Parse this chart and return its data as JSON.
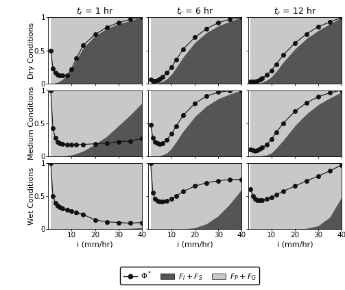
{
  "col_titles": [
    "$t_r$ = 1 hr",
    "$t_r$ = 6 hr",
    "$t_r$ = 12 hr"
  ],
  "row_titles": [
    "Dry Conditions",
    "Medium Conditions",
    "Wet Conditions"
  ],
  "xlabel": "i (mm/hr)",
  "xlim": [
    0,
    40
  ],
  "ylim": [
    0,
    1
  ],
  "yticks": [
    0,
    0.5,
    1
  ],
  "xticks": [
    10,
    20,
    30,
    40
  ],
  "i_values": [
    1,
    2,
    3,
    4,
    5,
    6,
    8,
    10,
    12,
    15,
    20,
    25,
    30,
    35,
    40
  ],
  "phi_star": [
    [
      0.5,
      0.23,
      0.16,
      0.13,
      0.12,
      0.12,
      0.12,
      0.22,
      0.38,
      0.58,
      0.74,
      0.85,
      0.92,
      0.97,
      1.0
    ],
    [
      0.06,
      0.04,
      0.04,
      0.05,
      0.07,
      0.1,
      0.16,
      0.25,
      0.36,
      0.52,
      0.7,
      0.83,
      0.92,
      0.97,
      1.0
    ],
    [
      0.03,
      0.03,
      0.03,
      0.04,
      0.06,
      0.08,
      0.13,
      0.2,
      0.29,
      0.43,
      0.61,
      0.75,
      0.86,
      0.93,
      1.0
    ],
    [
      1.0,
      0.42,
      0.28,
      0.22,
      0.2,
      0.19,
      0.18,
      0.18,
      0.18,
      0.18,
      0.19,
      0.2,
      0.22,
      0.23,
      0.27
    ],
    [
      0.48,
      0.28,
      0.22,
      0.2,
      0.19,
      0.2,
      0.25,
      0.34,
      0.46,
      0.62,
      0.8,
      0.91,
      0.97,
      0.99,
      1.0
    ],
    [
      0.1,
      0.09,
      0.08,
      0.09,
      0.11,
      0.13,
      0.18,
      0.26,
      0.36,
      0.5,
      0.68,
      0.81,
      0.9,
      0.96,
      1.0
    ],
    [
      1.0,
      0.5,
      0.4,
      0.35,
      0.33,
      0.31,
      0.29,
      0.27,
      0.25,
      0.22,
      0.14,
      0.11,
      0.1,
      0.09,
      0.1
    ],
    [
      1.0,
      0.55,
      0.46,
      0.43,
      0.42,
      0.42,
      0.43,
      0.46,
      0.5,
      0.57,
      0.65,
      0.7,
      0.73,
      0.75,
      0.75
    ],
    [
      0.6,
      0.5,
      0.46,
      0.44,
      0.44,
      0.44,
      0.46,
      0.48,
      0.52,
      0.57,
      0.65,
      0.73,
      0.8,
      0.88,
      0.97
    ]
  ],
  "F_IS": [
    [
      0.0,
      0.0,
      0.01,
      0.02,
      0.04,
      0.06,
      0.12,
      0.22,
      0.36,
      0.54,
      0.72,
      0.83,
      0.9,
      0.95,
      1.0
    ],
    [
      0.0,
      0.0,
      0.0,
      0.01,
      0.02,
      0.03,
      0.07,
      0.14,
      0.24,
      0.4,
      0.62,
      0.77,
      0.87,
      0.94,
      1.0
    ],
    [
      0.0,
      0.0,
      0.0,
      0.0,
      0.01,
      0.02,
      0.05,
      0.1,
      0.18,
      0.32,
      0.52,
      0.68,
      0.8,
      0.9,
      1.0
    ],
    [
      0.0,
      0.0,
      0.0,
      0.0,
      0.0,
      0.0,
      0.01,
      0.02,
      0.04,
      0.08,
      0.18,
      0.3,
      0.46,
      0.62,
      0.8
    ],
    [
      0.0,
      0.0,
      0.0,
      0.0,
      0.01,
      0.02,
      0.05,
      0.12,
      0.22,
      0.38,
      0.6,
      0.76,
      0.87,
      0.94,
      1.0
    ],
    [
      0.0,
      0.0,
      0.0,
      0.0,
      0.0,
      0.01,
      0.02,
      0.05,
      0.12,
      0.24,
      0.46,
      0.64,
      0.78,
      0.88,
      0.97
    ],
    [
      0.0,
      0.0,
      0.0,
      0.0,
      0.0,
      0.0,
      0.0,
      0.0,
      0.0,
      0.0,
      0.0,
      0.0,
      0.0,
      0.01,
      0.02
    ],
    [
      0.0,
      0.0,
      0.0,
      0.0,
      0.0,
      0.0,
      0.0,
      0.0,
      0.0,
      0.0,
      0.02,
      0.08,
      0.2,
      0.38,
      0.6
    ],
    [
      0.0,
      0.0,
      0.0,
      0.0,
      0.0,
      0.0,
      0.0,
      0.0,
      0.0,
      0.0,
      0.0,
      0.01,
      0.05,
      0.18,
      0.48
    ]
  ],
  "color_dark": "#555555",
  "color_light": "#c8c8c8",
  "color_line": "#111111",
  "marker_color": "#111111",
  "bg_color": "#ffffff",
  "title_fontsize": 9,
  "label_fontsize": 8,
  "tick_fontsize": 7.5,
  "row_label_fontsize": 8,
  "legend_fontsize": 8
}
